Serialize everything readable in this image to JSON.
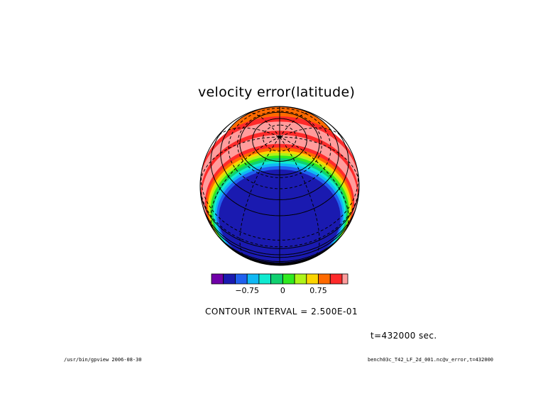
{
  "title": "velocity error(latitude)",
  "contour_text": "CONTOUR INTERVAL = 2.500E-01",
  "time_text": "t=432000 sec.",
  "footer": {
    "left": "/usr/bin/gpview  2006-08-30",
    "right": "bench03c_T42_LF_2d_001.nc@v_error,t=432000"
  },
  "chart_data": {
    "type": "heatmap",
    "title": "velocity error(latitude)",
    "projection": "orthographic",
    "contour_interval": 0.25,
    "colorbar": {
      "colors": [
        "#7000a8",
        "#1a1ab0",
        "#2060ee",
        "#10b8f4",
        "#10ead0",
        "#10d070",
        "#30ea20",
        "#aef418",
        "#fbd400",
        "#ff6a00",
        "#ff2a2a",
        "#ff9c9c"
      ],
      "tick_labels": [
        {
          "value": -0.75,
          "label": "−0.75"
        },
        {
          "value": 0,
          "label": "0"
        },
        {
          "value": 0.75,
          "label": "0.75"
        }
      ]
    }
  }
}
